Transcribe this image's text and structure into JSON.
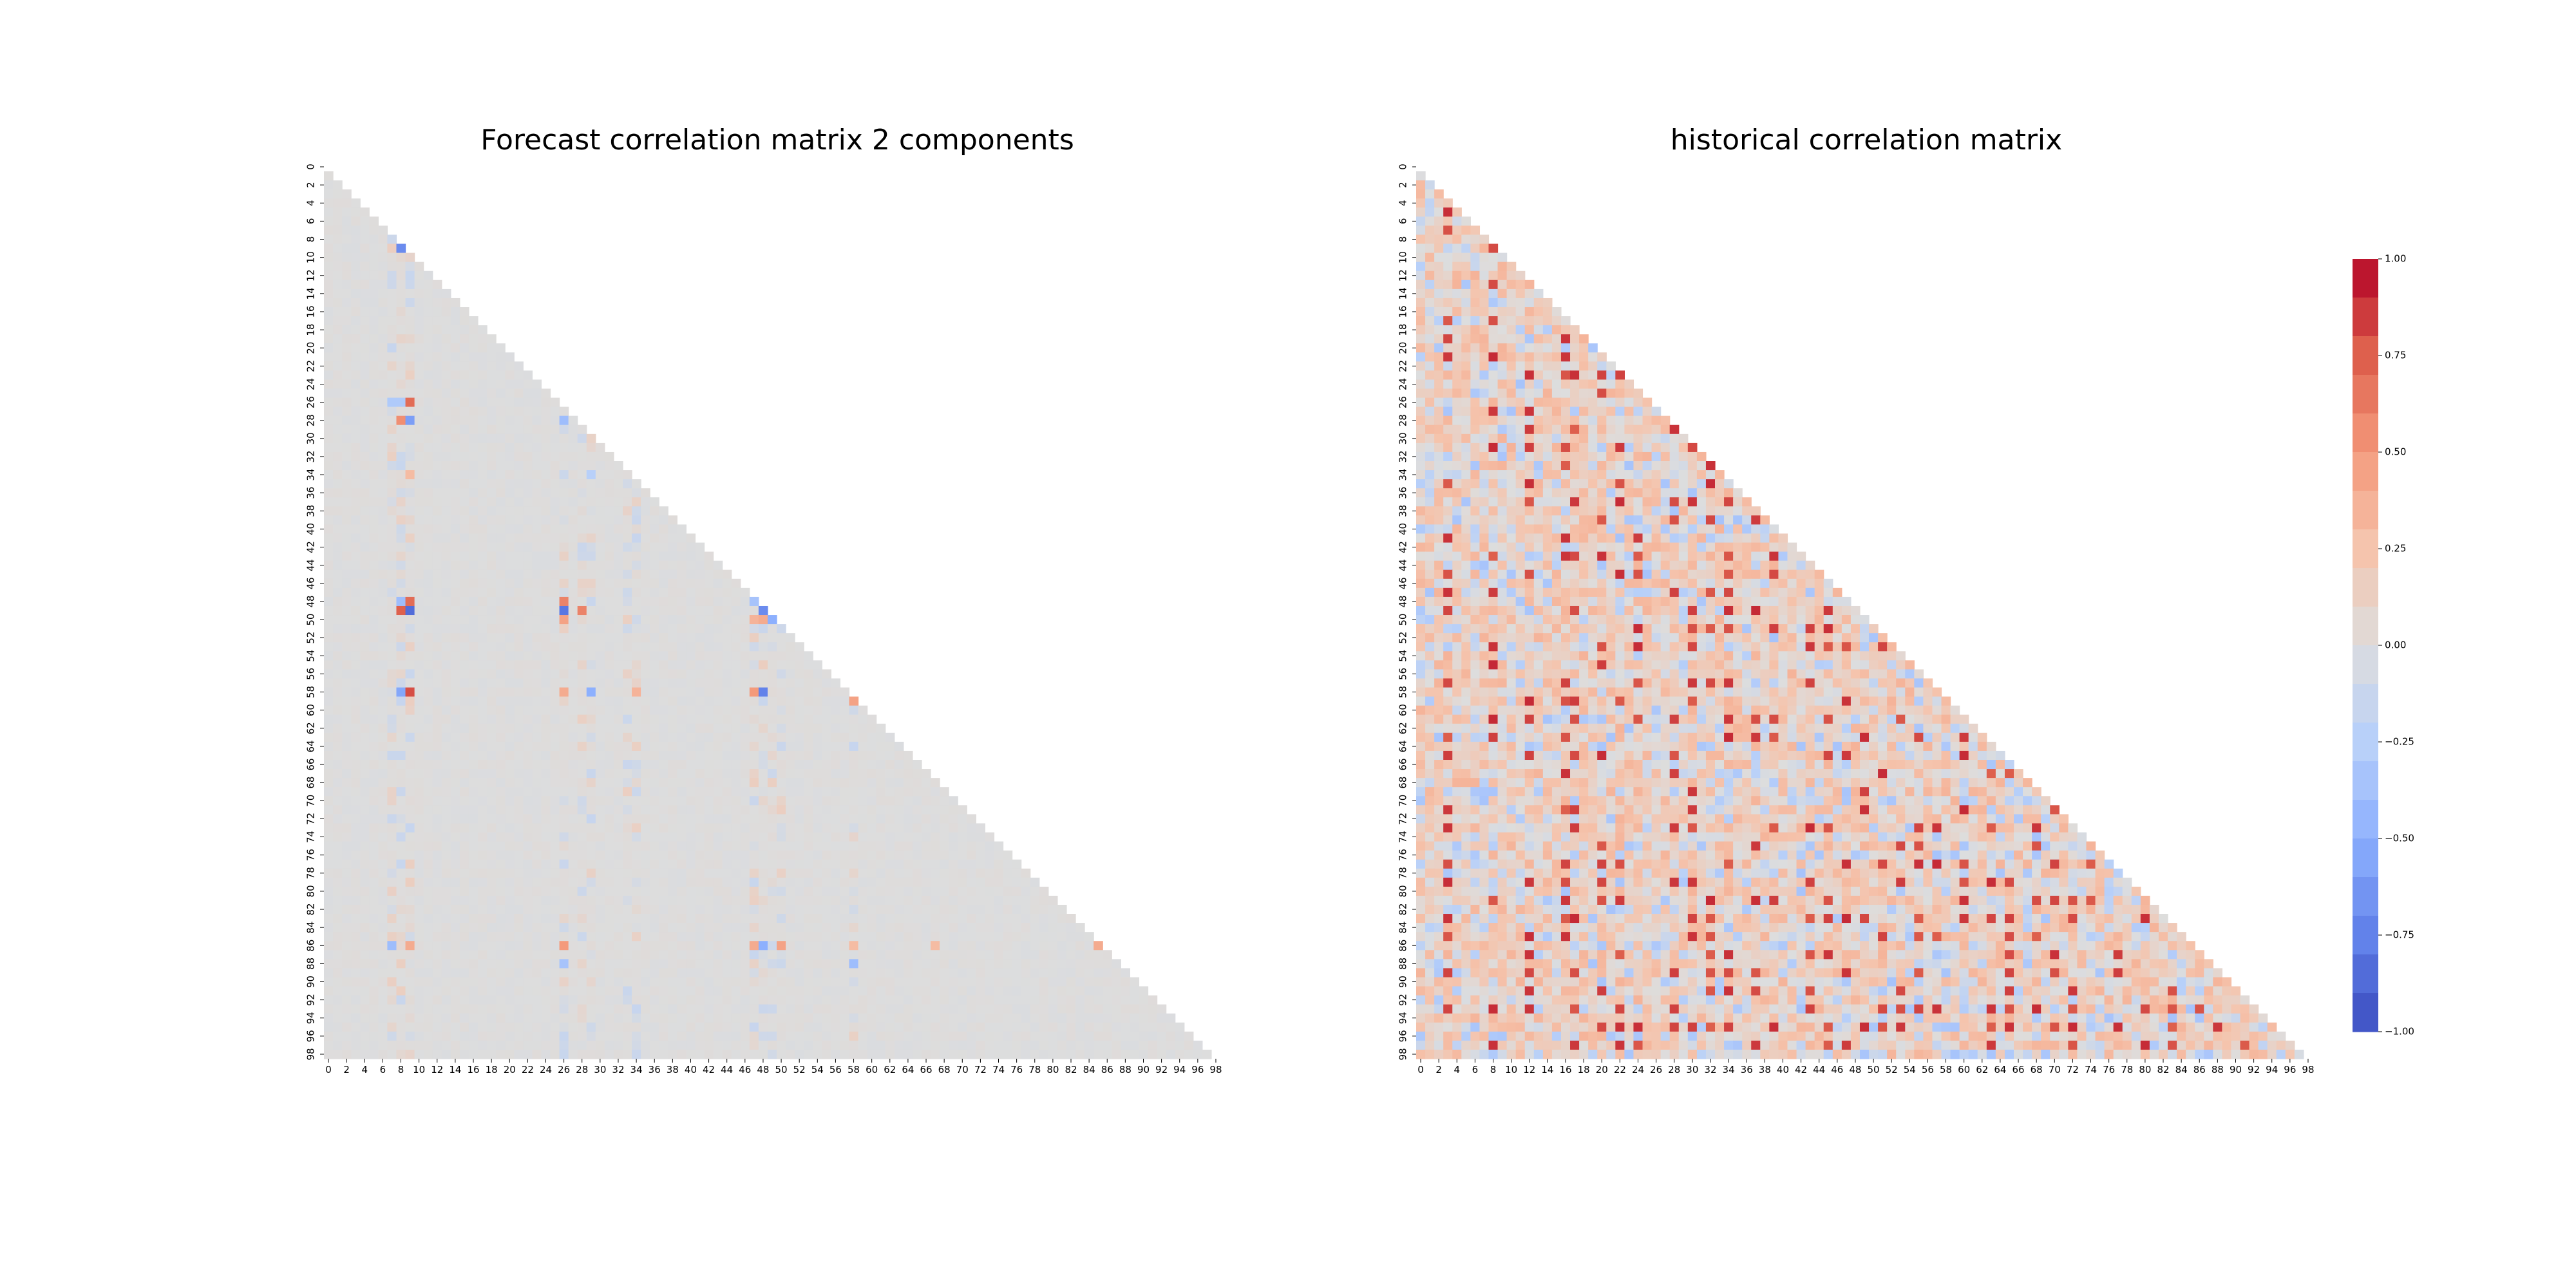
{
  "chart_data": [
    {
      "type": "heatmap",
      "title": "Forecast correlation matrix 2 components",
      "mask": "upper-triangle",
      "n": 99,
      "x_tick_labels": [
        "0",
        "2",
        "4",
        "6",
        "8",
        "10",
        "12",
        "14",
        "16",
        "18",
        "20",
        "22",
        "24",
        "26",
        "28",
        "30",
        "32",
        "34",
        "36",
        "38",
        "40",
        "42",
        "44",
        "46",
        "48",
        "50",
        "52",
        "54",
        "56",
        "58",
        "60",
        "62",
        "64",
        "66",
        "68",
        "70",
        "72",
        "74",
        "76",
        "78",
        "80",
        "82",
        "84",
        "86",
        "88",
        "90",
        "92",
        "94",
        "96",
        "98"
      ],
      "y_tick_labels": [
        "0",
        "2",
        "4",
        "6",
        "8",
        "10",
        "12",
        "14",
        "16",
        "18",
        "20",
        "22",
        "24",
        "26",
        "28",
        "30",
        "32",
        "34",
        "36",
        "38",
        "40",
        "42",
        "44",
        "46",
        "48",
        "50",
        "52",
        "54",
        "56",
        "58",
        "60",
        "62",
        "64",
        "66",
        "68",
        "70",
        "72",
        "74",
        "76",
        "78",
        "80",
        "82",
        "84",
        "86",
        "88",
        "90",
        "92",
        "94",
        "96",
        "98"
      ],
      "base_value": 0.0,
      "notable_cells": [
        {
          "i": 9,
          "j": 8,
          "v": -0.7
        },
        {
          "i": 26,
          "j": 7,
          "v": -0.3
        },
        {
          "i": 26,
          "j": 8,
          "v": -0.3
        },
        {
          "i": 26,
          "j": 9,
          "v": 0.7
        },
        {
          "i": 28,
          "j": 8,
          "v": 0.55
        },
        {
          "i": 28,
          "j": 9,
          "v": -0.6
        },
        {
          "i": 28,
          "j": 26,
          "v": -0.4
        },
        {
          "i": 34,
          "j": 9,
          "v": 0.3
        },
        {
          "i": 34,
          "j": 29,
          "v": -0.25
        },
        {
          "i": 48,
          "j": 8,
          "v": -0.4
        },
        {
          "i": 48,
          "j": 9,
          "v": 0.7
        },
        {
          "i": 48,
          "j": 26,
          "v": 0.6
        },
        {
          "i": 48,
          "j": 47,
          "v": -0.35
        },
        {
          "i": 49,
          "j": 8,
          "v": 0.75
        },
        {
          "i": 49,
          "j": 9,
          "v": -0.85
        },
        {
          "i": 49,
          "j": 26,
          "v": -0.8
        },
        {
          "i": 49,
          "j": 28,
          "v": 0.6
        },
        {
          "i": 49,
          "j": 48,
          "v": -0.7
        },
        {
          "i": 50,
          "j": 26,
          "v": 0.45
        },
        {
          "i": 50,
          "j": 47,
          "v": 0.35
        },
        {
          "i": 50,
          "j": 48,
          "v": 0.4
        },
        {
          "i": 50,
          "j": 49,
          "v": -0.5
        },
        {
          "i": 58,
          "j": 8,
          "v": -0.55
        },
        {
          "i": 58,
          "j": 9,
          "v": 0.8
        },
        {
          "i": 58,
          "j": 26,
          "v": 0.4
        },
        {
          "i": 58,
          "j": 29,
          "v": -0.5
        },
        {
          "i": 58,
          "j": 34,
          "v": 0.35
        },
        {
          "i": 58,
          "j": 47,
          "v": 0.5
        },
        {
          "i": 58,
          "j": 48,
          "v": -0.75
        },
        {
          "i": 59,
          "j": 58,
          "v": 0.45
        },
        {
          "i": 86,
          "j": 7,
          "v": -0.4
        },
        {
          "i": 86,
          "j": 9,
          "v": 0.4
        },
        {
          "i": 86,
          "j": 26,
          "v": 0.5
        },
        {
          "i": 86,
          "j": 47,
          "v": 0.4
        },
        {
          "i": 86,
          "j": 48,
          "v": -0.5
        },
        {
          "i": 86,
          "j": 50,
          "v": 0.45
        },
        {
          "i": 86,
          "j": 58,
          "v": 0.3
        },
        {
          "i": 86,
          "j": 67,
          "v": 0.3
        },
        {
          "i": 86,
          "j": 85,
          "v": 0.4
        },
        {
          "i": 88,
          "j": 26,
          "v": -0.35
        },
        {
          "i": 88,
          "j": 58,
          "v": -0.4
        }
      ]
    },
    {
      "type": "heatmap",
      "title": "historical correlation matrix",
      "mask": "upper-triangle",
      "n": 99,
      "x_tick_labels": [
        "0",
        "2",
        "4",
        "6",
        "8",
        "10",
        "12",
        "14",
        "16",
        "18",
        "20",
        "22",
        "24",
        "26",
        "28",
        "30",
        "32",
        "34",
        "36",
        "38",
        "40",
        "42",
        "44",
        "46",
        "48",
        "50",
        "52",
        "54",
        "56",
        "58",
        "60",
        "62",
        "64",
        "66",
        "68",
        "70",
        "72",
        "74",
        "76",
        "78",
        "80",
        "82",
        "84",
        "86",
        "88",
        "90",
        "92",
        "94",
        "96",
        "98"
      ],
      "y_tick_labels": [
        "0",
        "2",
        "4",
        "6",
        "8",
        "10",
        "12",
        "14",
        "16",
        "18",
        "20",
        "22",
        "24",
        "26",
        "28",
        "30",
        "32",
        "34",
        "36",
        "38",
        "40",
        "42",
        "44",
        "46",
        "48",
        "50",
        "52",
        "54",
        "56",
        "58",
        "60",
        "62",
        "64",
        "66",
        "68",
        "70",
        "72",
        "74",
        "76",
        "78",
        "80",
        "82",
        "84",
        "86",
        "88",
        "90",
        "92",
        "94",
        "96",
        "98"
      ],
      "high_corr_columns": [
        3,
        8,
        12,
        16,
        17,
        20,
        22,
        24,
        28,
        30,
        32,
        34,
        37,
        39,
        43,
        45,
        47,
        49,
        51,
        53,
        55,
        57,
        60,
        63,
        65,
        68,
        70,
        72,
        74,
        77,
        80,
        83,
        86,
        88,
        91
      ],
      "value_range": [
        -0.35,
        0.9
      ],
      "colorbar": {
        "vmin": -1.0,
        "vmax": 1.0,
        "tick_labels": [
          "1.00",
          "0.75",
          "0.50",
          "0.25",
          "0.00",
          "−0.25",
          "−0.50",
          "−0.75",
          "−1.00"
        ],
        "tick_values": [
          1.0,
          0.75,
          0.5,
          0.25,
          0.0,
          -0.25,
          -0.5,
          -0.75,
          -1.0
        ],
        "colormap": "coolwarm"
      }
    }
  ]
}
